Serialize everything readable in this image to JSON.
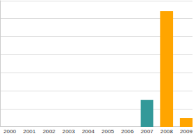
{
  "chart_data": {
    "type": "bar",
    "categories": [
      "2000",
      "2001",
      "2002",
      "2003",
      "2004",
      "2005",
      "2006",
      "2007",
      "2008",
      "2009"
    ],
    "values": [
      0,
      0,
      0,
      0,
      0,
      0,
      0,
      1.5,
      6.4,
      0.5
    ],
    "colors": [
      "#339999",
      "#339999",
      "#339999",
      "#339999",
      "#339999",
      "#339999",
      "#339999",
      "#339999",
      "#ffa500",
      "#ffa500"
    ],
    "ylim": [
      0,
      7
    ],
    "yticks": [
      0,
      1,
      2,
      3,
      4,
      5,
      6,
      7
    ],
    "grid": true,
    "tick_labels": "x"
  }
}
